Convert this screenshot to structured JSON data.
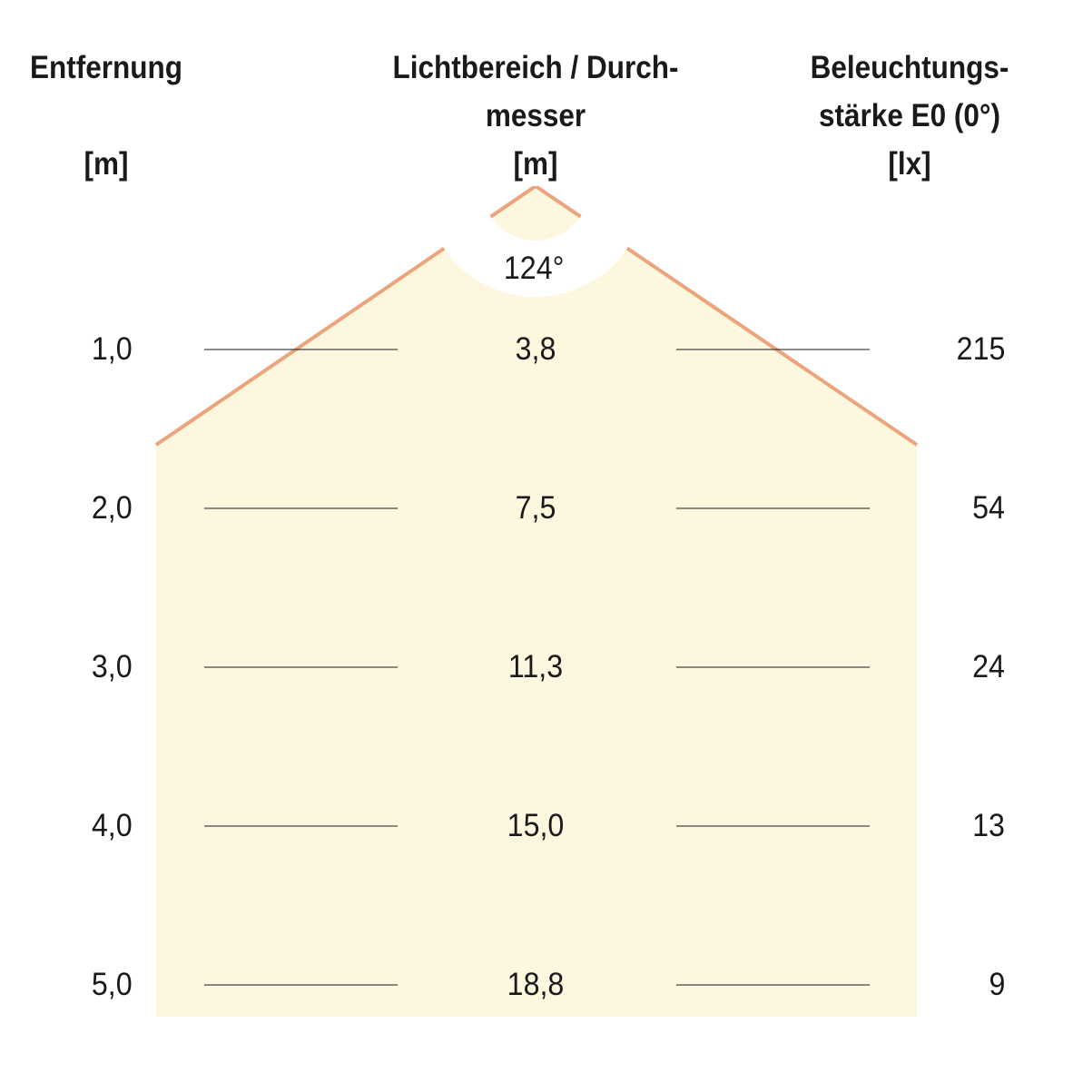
{
  "headers": {
    "distance": {
      "line1": "Entfernung",
      "unit": "[m]"
    },
    "diameter": {
      "line1": "Lichtbereich / Durch-",
      "line2": "messer",
      "unit": "[m]"
    },
    "illuminance": {
      "line1": "Beleuchtungs-",
      "line2": "stärke E0 (0°)",
      "unit": "[lx]"
    }
  },
  "beam_angle": "124°",
  "rows": [
    {
      "distance": "1,0",
      "diameter": "3,8",
      "illuminance": "215"
    },
    {
      "distance": "2,0",
      "diameter": "7,5",
      "illuminance": "54"
    },
    {
      "distance": "3,0",
      "diameter": "11,3",
      "illuminance": "24"
    },
    {
      "distance": "4,0",
      "diameter": "15,0",
      "illuminance": "13"
    },
    {
      "distance": "5,0",
      "diameter": "18,8",
      "illuminance": "9"
    }
  ],
  "colors": {
    "beam_fill": "#fdf7e0",
    "beam_edge": "#eba47c",
    "text": "#1a1a1a"
  }
}
